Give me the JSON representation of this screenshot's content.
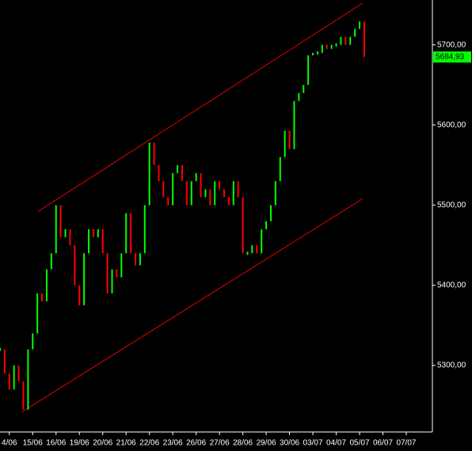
{
  "chart_data": {
    "type": "price",
    "up_color": "#00ff00",
    "down_color": "#ff0000",
    "axis_color": "#ffffff",
    "x": [
      -0.4,
      -0.2,
      0,
      0.2,
      0.4,
      0.6,
      0.8,
      1,
      1.2,
      1.4,
      1.6,
      1.8,
      2,
      2.2,
      2.4,
      2.6,
      2.8,
      3,
      3.2,
      3.4,
      3.6,
      3.8,
      4,
      4.2,
      4.4,
      4.6,
      4.8,
      5,
      5.2,
      5.4,
      5.6,
      5.8,
      6,
      6.2,
      6.4,
      6.6,
      6.8,
      7,
      7.2,
      7.4,
      7.6,
      7.8,
      8,
      8.2,
      8.4,
      8.6,
      8.8,
      9,
      9.2,
      9.4,
      9.6,
      9.8,
      10,
      10.2,
      10.4,
      10.6,
      10.8,
      11,
      11.2,
      11.4,
      11.6,
      11.8,
      12,
      12.2,
      12.4,
      12.6,
      12.8,
      13,
      13.2,
      13.4,
      13.6,
      13.8,
      14,
      14.2,
      14.4,
      14.6,
      14.8,
      15,
      15.2
    ],
    "values": [
      5320,
      5290,
      5270,
      5300,
      5280,
      5245,
      5320,
      5340,
      5390,
      5380,
      5420,
      5440,
      5500,
      5460,
      5470,
      5450,
      5400,
      5375,
      5440,
      5470,
      5460,
      5470,
      5440,
      5390,
      5420,
      5410,
      5440,
      5490,
      5440,
      5425,
      5440,
      5500,
      5578,
      5550,
      5530,
      5510,
      5500,
      5540,
      5550,
      5530,
      5500,
      5530,
      5540,
      5510,
      5520,
      5500,
      5530,
      5520,
      5510,
      5500,
      5530,
      5510,
      5440,
      5440,
      5450,
      5440,
      5470,
      5480,
      5500,
      5530,
      5560,
      5593,
      5570,
      5630,
      5640,
      5650,
      5687,
      5690,
      5690,
      5700,
      5695,
      5700,
      5700,
      5710,
      5700,
      5710,
      5720,
      5729,
      5684.93
    ],
    "last_price": {
      "value": 5684.93,
      "label": "5684,93"
    },
    "trend_lines": [
      {
        "color": "#e00000",
        "x": [
          1.22,
          15.13
        ],
        "y": [
          5492,
          5752
        ]
      },
      {
        "color": "#e00000",
        "x": [
          0.54,
          15.13
        ],
        "y": [
          5242,
          5508
        ]
      }
    ],
    "xlim": [
      -0.4,
      18.12
    ],
    "ylim": [
      5217,
      5756
    ],
    "xticks": [
      {
        "value": 0,
        "label": "4/06"
      },
      {
        "value": 1,
        "label": "15/06"
      },
      {
        "value": 2,
        "label": "16/06"
      },
      {
        "value": 3,
        "label": "19/06"
      },
      {
        "value": 4,
        "label": "20/06"
      },
      {
        "value": 5,
        "label": "21/06"
      },
      {
        "value": 6,
        "label": "22/06"
      },
      {
        "value": 7,
        "label": "23/06"
      },
      {
        "value": 8,
        "label": "26/06"
      },
      {
        "value": 9,
        "label": "27/06"
      },
      {
        "value": 10,
        "label": "28/06"
      },
      {
        "value": 11,
        "label": "29/06"
      },
      {
        "value": 12,
        "label": "30/06"
      },
      {
        "value": 13,
        "label": "03/07"
      },
      {
        "value": 14,
        "label": "04/07"
      },
      {
        "value": 15,
        "label": "05/07"
      },
      {
        "value": 16,
        "label": "06/07"
      },
      {
        "value": 17,
        "label": "07/07"
      }
    ],
    "yticks": [
      {
        "value": 5300,
        "label": "5300,00"
      },
      {
        "value": 5400,
        "label": "5400,00"
      },
      {
        "value": 5500,
        "label": "5500,00"
      },
      {
        "value": 5600,
        "label": "5600,00"
      },
      {
        "value": 5700,
        "label": "5700,00"
      }
    ]
  }
}
